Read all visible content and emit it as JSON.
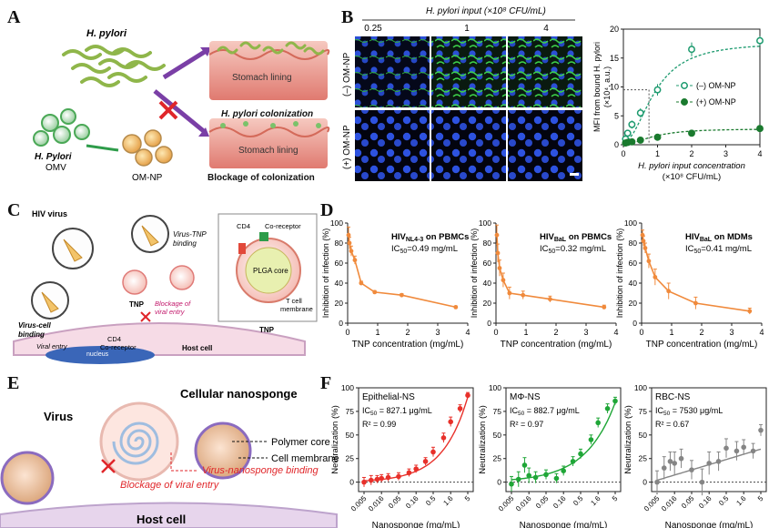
{
  "panels": {
    "A": {
      "label": "A",
      "hpylori": "H. pylori",
      "hpylori_omv_line1": "H. Pylori",
      "hpylori_omv_line2": "OMV",
      "omnp": "OM-NP",
      "stomach1": "Stomach lining",
      "stomach2": "Stomach lining",
      "colonization": "H. pylori colonization",
      "blockage": "Blockage of colonization"
    },
    "B": {
      "label": "B",
      "input_title": "H. pylori input (×10⁸ CFU/mL)",
      "col_labels": [
        "0.25",
        "1",
        "4"
      ],
      "row_labels": [
        "(–) OM-NP",
        "(+) OM-NP"
      ]
    },
    "C": {
      "label": "C",
      "hiv_virus": "HIV virus",
      "virus_tnp_binding_1": "Virus-TNP",
      "virus_tnp_binding_2": "binding",
      "virus_cell_binding_1": "Virus-cell",
      "virus_cell_binding_2": "binding",
      "tnp": "TNP",
      "blockage_1": "Blockage of",
      "blockage_2": "viral entry",
      "viral_entry": "Viral entry",
      "cd4": "CD4",
      "coreceptor": "Co-receptor",
      "host_cell": "Host cell",
      "nucleus": "nucleus",
      "inset_cd4": "CD4",
      "inset_coreceptor": "Co-receptor",
      "plga_core": "PLGA core",
      "t_cell_1": "T cell",
      "t_cell_2": "membrane",
      "inset_tnp": "TNP"
    },
    "D": {
      "label": "D"
    },
    "E": {
      "label": "E",
      "virus": "Virus",
      "cellular_nanosponge": "Cellular nanosponge",
      "polymer_core": "Polymer core",
      "cell_membrane": "Cell membrane",
      "binding": "Virus-nanosponge binding",
      "blockage": "Blockage of viral entry",
      "host_cell": "Host cell"
    },
    "F": {
      "label": "F"
    }
  },
  "colors": {
    "orange": "#f08a3c",
    "red": "#e8302a",
    "green": "#1fa637",
    "gray": "#858585",
    "teal": "#1c9a6e",
    "dkgreen": "#1a7a2e"
  },
  "chart_data": [
    {
      "id": "B-mfi",
      "type": "scatter",
      "xlabel_line1": "H. pylori input concentration",
      "xlabel_line2": "(×10⁸ CFU/mL)",
      "ylabel_line1": "MFI from bound H. pylori",
      "ylabel_line2": "(×10⁴, a.u.)",
      "xticks": [
        "0",
        "1",
        "2",
        "3",
        "4"
      ],
      "yticks": [
        "0",
        "5",
        "10",
        "15",
        "20"
      ],
      "xlim": [
        0,
        4
      ],
      "ylim": [
        0,
        20
      ],
      "reference": {
        "x": 0.75,
        "y": 9.5
      },
      "series": [
        {
          "name": "(–) OM-NP",
          "x": [
            0.0625,
            0.125,
            0.25,
            0.5,
            1,
            2,
            4
          ],
          "y": [
            1,
            2,
            3.5,
            5.5,
            9.5,
            16.5,
            18
          ],
          "err": [
            0.6,
            0.6,
            0.7,
            0.8,
            1,
            1.2,
            0.8
          ],
          "fill": "none",
          "color": "#1c9a6e"
        },
        {
          "name": "(+) OM-NP",
          "x": [
            0.0625,
            0.125,
            0.25,
            0.5,
            1,
            2,
            4
          ],
          "y": [
            0.3,
            0.4,
            0.5,
            0.8,
            1.3,
            2,
            2.8
          ],
          "err": [
            0.3,
            0.3,
            0.3,
            0.3,
            0.5,
            0.5,
            0.6
          ],
          "fill": "solid",
          "color": "#1a7a2e"
        }
      ]
    },
    {
      "id": "D1",
      "type": "line",
      "title_main": "HIV",
      "title_sub": "NL4-3",
      "title_rest": " on PBMCs",
      "ic50_prefix": "IC",
      "ic50_sub": "50",
      "ic50_value": "=0.49 mg/mL",
      "xlabel": "TNP concentration (mg/mL)",
      "ylabel": "Inhibition of infection (%)",
      "xlim": [
        0,
        4
      ],
      "ylim": [
        0,
        100
      ],
      "xticks": [
        "0",
        "1",
        "2",
        "3",
        "4"
      ],
      "yticks": [
        "0",
        "20",
        "40",
        "60",
        "80",
        "100"
      ],
      "x": [
        0.03,
        0.06,
        0.12,
        0.24,
        0.45,
        0.9,
        1.8,
        3.6
      ],
      "y": [
        88,
        80,
        72,
        63,
        40,
        31,
        28,
        16
      ],
      "err": [
        8,
        6,
        5,
        4,
        2,
        1.5,
        1.5,
        1.2
      ]
    },
    {
      "id": "D2",
      "type": "line",
      "title_main": "HIV",
      "title_sub": "BaL",
      "title_rest": " on PBMCs",
      "ic50_prefix": "IC",
      "ic50_sub": "50",
      "ic50_value": "=0.32 mg/mL",
      "xlabel": "TNP concentration (mg/mL)",
      "ylabel": "Inhibition of infection (%)",
      "xlim": [
        0,
        4
      ],
      "ylim": [
        0,
        100
      ],
      "xticks": [
        "0",
        "1",
        "2",
        "3",
        "4"
      ],
      "yticks": [
        "0",
        "20",
        "40",
        "60",
        "80",
        "100"
      ],
      "x": [
        0.03,
        0.06,
        0.12,
        0.24,
        0.45,
        0.9,
        1.8,
        3.6
      ],
      "y": [
        88,
        70,
        55,
        43,
        30,
        28,
        24,
        16
      ],
      "err": [
        10,
        9,
        8,
        7,
        6,
        4,
        3,
        2
      ]
    },
    {
      "id": "D3",
      "type": "line",
      "title_main": "HIV",
      "title_sub": "BaL",
      "title_rest": " on MDMs",
      "ic50_prefix": "IC",
      "ic50_sub": "50",
      "ic50_value": "=0.41 mg/mL",
      "xlabel": "TNP concentration (mg/mL)",
      "ylabel": "Inhibition of infection (%)",
      "xlim": [
        0,
        4
      ],
      "ylim": [
        0,
        100
      ],
      "xticks": [
        "0",
        "1",
        "2",
        "3",
        "4"
      ],
      "yticks": [
        "0",
        "20",
        "40",
        "60",
        "80",
        "100"
      ],
      "x": [
        0.03,
        0.06,
        0.12,
        0.24,
        0.45,
        0.9,
        1.8,
        3.6
      ],
      "y": [
        88,
        82,
        75,
        62,
        46,
        32,
        20,
        12
      ],
      "err": [
        5,
        5,
        5,
        7,
        8,
        8,
        6,
        3
      ]
    },
    {
      "id": "F1",
      "type": "scatter",
      "title": "Epithelial-NS",
      "ic50_prefix": "IC",
      "ic50_sub": "50",
      "ic50_value": " = 827.1 μg/mL",
      "r2_value": "R² = 0.99",
      "xlabel": "Nanosponge (mg/mL)",
      "ylabel": "Neutralization (%)",
      "ylim": [
        -10,
        100
      ],
      "xticks": [
        "0.005",
        "0.016",
        "0.05",
        "0.16",
        "0.5",
        "1.6",
        "5"
      ],
      "yticks": [
        "0",
        "25",
        "50",
        "75",
        "100"
      ],
      "x": [
        0.005,
        0.008,
        0.012,
        0.016,
        0.025,
        0.05,
        0.1,
        0.16,
        0.3,
        0.5,
        1,
        1.6,
        3,
        5
      ],
      "y": [
        0,
        2,
        3,
        4,
        5,
        6,
        10,
        14,
        22,
        32,
        47,
        64,
        78,
        92
      ],
      "err": [
        5,
        5,
        4,
        4,
        4,
        4,
        4,
        4,
        4,
        5,
        5,
        5,
        4,
        3
      ]
    },
    {
      "id": "F2",
      "type": "scatter",
      "title": "MΦ-NS",
      "ic50_prefix": "IC",
      "ic50_sub": "50",
      "ic50_value": " = 882.7 μg/mL",
      "r2_value": "R² = 0.97",
      "xlabel": "Nanosponge (mg/mL)",
      "ylabel": "Neutralization (%)",
      "ylim": [
        -10,
        100
      ],
      "xticks": [
        "0.005",
        "0.016",
        "0.05",
        "0.16",
        "0.5",
        "1.6",
        "5"
      ],
      "yticks": [
        "0",
        "25",
        "50",
        "75",
        "100"
      ],
      "x": [
        0.005,
        0.008,
        0.012,
        0.016,
        0.025,
        0.05,
        0.1,
        0.16,
        0.3,
        0.5,
        1,
        1.6,
        3,
        5
      ],
      "y": [
        -2,
        3,
        18,
        7,
        5,
        8,
        4,
        12,
        22,
        30,
        45,
        63,
        78,
        86
      ],
      "err": [
        8,
        8,
        8,
        8,
        6,
        5,
        5,
        5,
        5,
        5,
        5,
        5,
        5,
        4
      ]
    },
    {
      "id": "F3",
      "type": "scatter",
      "title": "RBC-NS",
      "ic50_prefix": "IC",
      "ic50_sub": "50",
      "ic50_value": " = 7530 μg/mL",
      "r2_value": "R² = 0.67",
      "xlabel": "Nanosponge (mg/mL)",
      "ylabel": "Neutralization (%)",
      "ylim": [
        -10,
        100
      ],
      "xticks": [
        "0.005",
        "0.016",
        "0.05",
        "0.16",
        "0.5",
        "1.6",
        "5"
      ],
      "yticks": [
        "0",
        "25",
        "50",
        "75",
        "100"
      ],
      "x": [
        0.005,
        0.008,
        0.012,
        0.016,
        0.025,
        0.05,
        0.1,
        0.16,
        0.3,
        0.5,
        1,
        1.6,
        3,
        5
      ],
      "y": [
        0,
        15,
        22,
        20,
        25,
        13,
        0,
        20,
        22,
        36,
        33,
        37,
        33,
        55
      ],
      "err": [
        12,
        12,
        10,
        12,
        10,
        10,
        14,
        12,
        10,
        10,
        10,
        8,
        8,
        6
      ]
    }
  ]
}
